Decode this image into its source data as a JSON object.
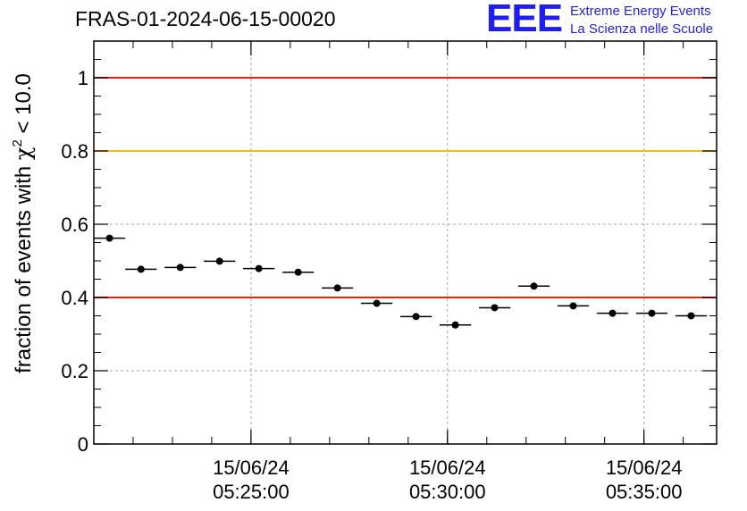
{
  "header": {
    "title": "FRAS-01-2024-06-15-00020",
    "logo_mark": "EEE",
    "logo_line1": "Extreme Energy Events",
    "logo_line2": "La Scienza nelle Scuole"
  },
  "chart_data": {
    "type": "scatter",
    "ylabel_main": "fraction of events with ",
    "ylabel_chi": "χ",
    "ylabel_sup": "2",
    "ylabel_tail": " < 10.0",
    "ylim": [
      0,
      1.1
    ],
    "yticks": [
      {
        "v": 0,
        "label": "0"
      },
      {
        "v": 0.2,
        "label": "0.2"
      },
      {
        "v": 0.4,
        "label": "0.4"
      },
      {
        "v": 0.6,
        "label": "0.6"
      },
      {
        "v": 0.8,
        "label": "0.8"
      },
      {
        "v": 1.0,
        "label": "1"
      }
    ],
    "xlim_minutes": [
      21.0,
      36.85
    ],
    "xticks": [
      {
        "t": 25,
        "date": "15/06/24",
        "time": "05:25:00"
      },
      {
        "t": 30,
        "date": "15/06/24",
        "time": "05:30:00"
      },
      {
        "t": 35,
        "date": "15/06/24",
        "time": "05:35:00"
      }
    ],
    "reference_lines": [
      {
        "y": 1.0,
        "color": "#e8201a"
      },
      {
        "y": 0.8,
        "color": "#f5c000"
      },
      {
        "y": 0.4,
        "color": "#e8201a"
      }
    ],
    "grid": true,
    "points": [
      {
        "x": 21.4,
        "y": 0.562
      },
      {
        "x": 22.2,
        "y": 0.477
      },
      {
        "x": 23.2,
        "y": 0.482
      },
      {
        "x": 24.2,
        "y": 0.499
      },
      {
        "x": 25.2,
        "y": 0.479
      },
      {
        "x": 26.2,
        "y": 0.469
      },
      {
        "x": 27.2,
        "y": 0.426
      },
      {
        "x": 28.2,
        "y": 0.384
      },
      {
        "x": 29.2,
        "y": 0.348
      },
      {
        "x": 30.2,
        "y": 0.325
      },
      {
        "x": 31.2,
        "y": 0.372
      },
      {
        "x": 32.2,
        "y": 0.431
      },
      {
        "x": 33.2,
        "y": 0.377
      },
      {
        "x": 34.2,
        "y": 0.357
      },
      {
        "x": 35.2,
        "y": 0.357
      },
      {
        "x": 36.2,
        "y": 0.35
      }
    ],
    "xerr_minutes": 0.4
  }
}
